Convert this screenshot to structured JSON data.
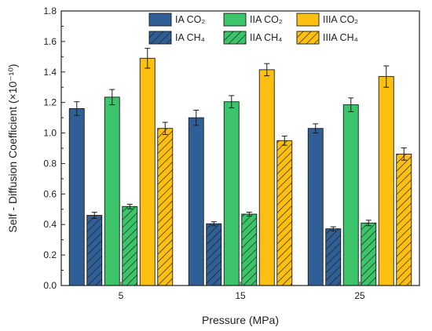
{
  "chart_data": {
    "type": "bar",
    "xlabel": "Pressure (MPa)",
    "ylabel": "Self - Diffusion Coefficient (×10⁻¹⁰)",
    "categories": [
      "5",
      "15",
      "25"
    ],
    "ylim": [
      0.0,
      1.8
    ],
    "yticks": [
      "0.0",
      "0.2",
      "0.4",
      "0.6",
      "0.8",
      "1.0",
      "1.2",
      "1.4",
      "1.6",
      "1.8"
    ],
    "grid": false,
    "legend_position": "top-right",
    "series": [
      {
        "name": "IA CO₂",
        "color": "#2f5f95",
        "hatched": false,
        "values": [
          1.16,
          1.1,
          1.03
        ],
        "errors": [
          0.045,
          0.05,
          0.03
        ]
      },
      {
        "name": "IA CH₄",
        "color": "#2f5f95",
        "hatched": true,
        "values": [
          0.46,
          0.405,
          0.372
        ],
        "errors": [
          0.02,
          0.013,
          0.013
        ]
      },
      {
        "name": "IIA CO₂",
        "color": "#3cc46a",
        "hatched": false,
        "values": [
          1.235,
          1.205,
          1.185
        ],
        "errors": [
          0.05,
          0.04,
          0.045
        ]
      },
      {
        "name": "IIA CH₄",
        "color": "#3cc46a",
        "hatched": true,
        "values": [
          0.518,
          0.468,
          0.41
        ],
        "errors": [
          0.015,
          0.013,
          0.018
        ]
      },
      {
        "name": "IIIA CO₂",
        "color": "#fdc010",
        "hatched": false,
        "values": [
          1.49,
          1.415,
          1.37
        ],
        "errors": [
          0.065,
          0.04,
          0.07
        ]
      },
      {
        "name": "IIIA CH₄",
        "color": "#fdc010",
        "hatched": true,
        "values": [
          1.03,
          0.95,
          0.862
        ],
        "errors": [
          0.04,
          0.03,
          0.04
        ]
      }
    ],
    "legend_order": [
      0,
      2,
      4,
      1,
      3,
      5
    ]
  }
}
